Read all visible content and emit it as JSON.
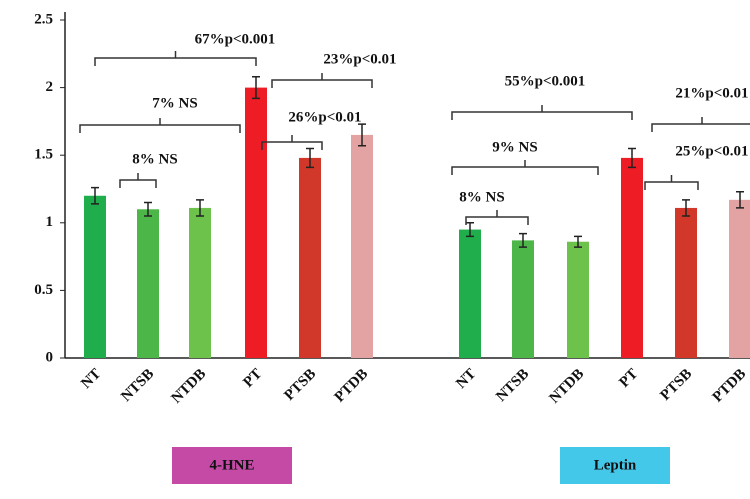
{
  "chart_data": {
    "type": "bar",
    "categories": [
      "NT",
      "NTSB",
      "NTDB",
      "PT",
      "PTSB",
      "PTDB",
      "NT",
      "NTSB",
      "NTDB",
      "PT",
      "PTSB",
      "PTDB"
    ],
    "values": [
      1.2,
      1.1,
      1.11,
      2.0,
      1.48,
      1.65,
      0.95,
      0.87,
      0.86,
      1.48,
      1.11,
      1.17
    ],
    "errors": [
      0.06,
      0.05,
      0.06,
      0.08,
      0.07,
      0.08,
      0.05,
      0.05,
      0.04,
      0.07,
      0.06,
      0.06
    ],
    "colors": [
      "#1fae4b",
      "#4cb748",
      "#6cc24a",
      "#ee1c25",
      "#d2382a",
      "#e4a3a3",
      "#1fae4b",
      "#4cb748",
      "#6cc24a",
      "#ee1c25",
      "#d2382a",
      "#e4a3a3"
    ],
    "ylim": [
      0,
      2.5
    ],
    "yticks": [
      0,
      0.5,
      1,
      1.5,
      2,
      2.5
    ],
    "groups": [
      {
        "label": "4-HNE",
        "color": "#c44aa6"
      },
      {
        "label": "Leptin",
        "color": "#44c8ea"
      }
    ],
    "annotations": [
      "67%p<0.001",
      "23%p<0.01",
      "7% NS",
      "26%p<0.01",
      "8% NS",
      "55%p<0.001",
      "21%p<0.01",
      "9% NS",
      "25%p<0.01",
      "8% NS"
    ]
  }
}
